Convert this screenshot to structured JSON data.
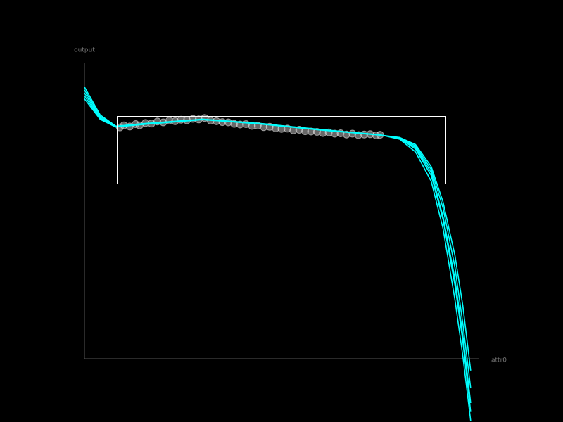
{
  "chart_data": [
    {
      "type": "scatter",
      "x_label": "attr0",
      "y_label": "output",
      "color": "#bbbbbb",
      "xlim": [
        0,
        100
      ],
      "ylim": [
        0,
        100
      ],
      "x": [
        9,
        10,
        11.5,
        13,
        14,
        15.5,
        17,
        18.5,
        20,
        21.5,
        23,
        24.5,
        26,
        27.5,
        29,
        30.5,
        32,
        33.5,
        35,
        36.5,
        38,
        39.5,
        41,
        42.5,
        44,
        45.5,
        47,
        48.5,
        50,
        51.5,
        53,
        54.5,
        56,
        57.5,
        59,
        60.5,
        62,
        63.5,
        65,
        66.5,
        68,
        69.5,
        71,
        72.5,
        74,
        75
      ],
      "values": [
        78.3,
        79.0,
        78.6,
        79.4,
        79.0,
        79.8,
        79.6,
        80.3,
        80.0,
        80.6,
        80.4,
        80.9,
        80.7,
        81.2,
        81.0,
        81.5,
        80.6,
        80.4,
        80.1,
        80.0,
        79.5,
        79.3,
        79.4,
        78.8,
        78.9,
        78.4,
        78.5,
        78.0,
        77.8,
        77.9,
        77.3,
        77.5,
        77.0,
        76.9,
        76.8,
        76.4,
        76.6,
        76.2,
        76.3,
        75.9,
        76.2,
        75.7,
        75.9,
        76.0,
        75.6,
        75.8
      ]
    },
    {
      "type": "line",
      "xlim": [
        0,
        100
      ],
      "ylim": [
        0,
        100
      ],
      "x": [
        0,
        4,
        8,
        15,
        30,
        45,
        60,
        75,
        80,
        84,
        88,
        91,
        94,
        96,
        98
      ],
      "series": [
        {
          "color": "#00ffff",
          "values": [
            91,
            82,
            78.5,
            79.5,
            81,
            79.5,
            77.5,
            75.8,
            74.5,
            71,
            62,
            47,
            25,
            6,
            -18
          ]
        },
        {
          "color": "#00ffff",
          "values": [
            88,
            81,
            78.4,
            79.4,
            81,
            79.4,
            77.4,
            75.7,
            74.8,
            72,
            64,
            51,
            31,
            12,
            -10
          ]
        },
        {
          "color": "#00ffff",
          "values": [
            90,
            81.5,
            78.6,
            79.5,
            81.1,
            79.6,
            77.5,
            75.8,
            74.3,
            70,
            60,
            44,
            20,
            1,
            -21
          ]
        },
        {
          "color": "#00ffff",
          "values": [
            89,
            81.2,
            78.5,
            79.3,
            80.9,
            79.5,
            77.6,
            75.7,
            74.9,
            72.5,
            65,
            53,
            35,
            18,
            -4
          ]
        },
        {
          "color": "#00ffff",
          "values": [
            92,
            82.5,
            78.7,
            79.6,
            81,
            79.5,
            77.5,
            75.8,
            74.6,
            71.5,
            63,
            48,
            27,
            8,
            -15
          ]
        }
      ]
    }
  ]
}
